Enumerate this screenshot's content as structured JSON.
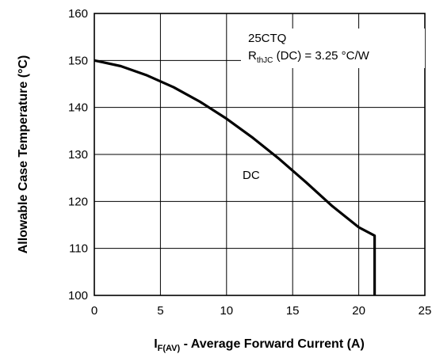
{
  "chart_data": {
    "type": "line",
    "xlabel_main": "I",
    "xlabel_sub": "F(AV)",
    "xlabel_rest": " - Average Forward Current (A)",
    "ylabel": "Allowable Case Temperature (°C)",
    "xlim": [
      0,
      25
    ],
    "ylim": [
      100,
      160
    ],
    "x_ticks": [
      0,
      5,
      10,
      15,
      20,
      25
    ],
    "y_ticks": [
      100,
      110,
      120,
      130,
      140,
      150,
      160
    ],
    "grid": true,
    "annotations": {
      "part": "25CTQ",
      "rth_main": "R",
      "rth_sub": "thJC",
      "rth_rest": " (DC) = 3.25 °C/W"
    },
    "series": [
      {
        "name": "DC",
        "x": [
          0,
          2,
          4,
          6,
          8,
          10,
          12,
          14,
          16,
          18,
          20,
          21.2,
          21.2
        ],
        "y": [
          150,
          148.8,
          146.8,
          144.3,
          141.2,
          137.6,
          133.5,
          129.0,
          124.1,
          119.0,
          114.5,
          112.7,
          100
        ]
      }
    ]
  }
}
